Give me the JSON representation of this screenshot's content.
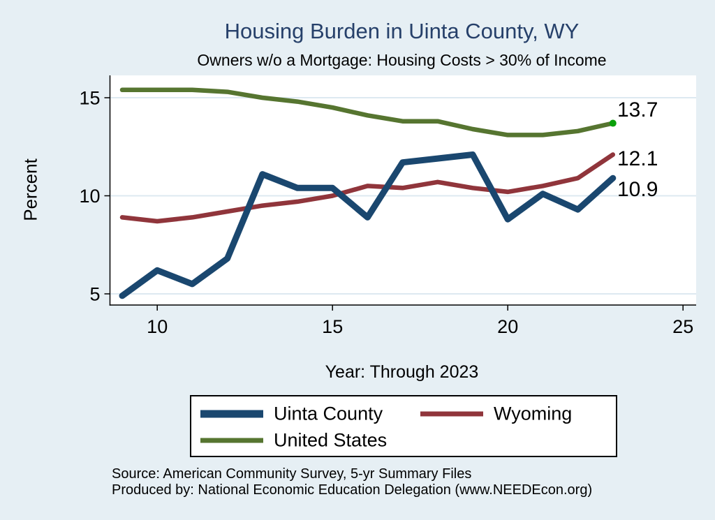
{
  "header": {
    "title": "Housing Burden in Uinta County, WY",
    "subtitle": "Owners w/o a Mortgage: Housing Costs > 30% of Income"
  },
  "chart_data": {
    "type": "line",
    "x_years": [
      2009,
      2010,
      2011,
      2012,
      2013,
      2014,
      2015,
      2016,
      2017,
      2018,
      2019,
      2020,
      2021,
      2022,
      2023
    ],
    "series": [
      {
        "name": "United States",
        "color": "#567530",
        "line_width": 6.5,
        "values": [
          15.4,
          15.4,
          15.4,
          15.3,
          15.0,
          14.8,
          14.5,
          14.1,
          13.8,
          13.8,
          13.4,
          13.1,
          13.1,
          13.3,
          13.7
        ],
        "end_label": "13.7",
        "end_marker_color": "#0aa00a"
      },
      {
        "name": "Wyoming",
        "color": "#90353b",
        "line_width": 6.5,
        "values": [
          8.9,
          8.7,
          8.9,
          9.2,
          9.5,
          9.7,
          10.0,
          10.5,
          10.4,
          10.7,
          10.4,
          10.2,
          10.5,
          10.9,
          12.1
        ],
        "end_label": "12.1",
        "end_marker_color": null
      },
      {
        "name": "Uinta County",
        "color": "#1a476f",
        "line_width": 9,
        "values": [
          4.9,
          6.2,
          5.5,
          6.8,
          11.1,
          10.4,
          10.4,
          8.9,
          11.7,
          11.9,
          12.1,
          8.8,
          10.1,
          9.3,
          10.9
        ],
        "end_label": "10.9",
        "end_marker_color": null
      }
    ],
    "title": "Housing Burden in Uinta County, WY",
    "subtitle": "Owners w/o a Mortgage: Housing Costs > 30% of Income",
    "xlabel": "Year: Through 2023",
    "ylabel": "Percent",
    "xticks": [
      "10",
      "15",
      "20",
      "25"
    ],
    "xtick_years": [
      2010,
      2015,
      2020,
      2025
    ],
    "yticks": [
      "5",
      "10",
      "15"
    ],
    "ytick_values": [
      5,
      10,
      15
    ],
    "xlim_years": [
      2008.6,
      2025.4
    ],
    "ylim": [
      4.4,
      16.1
    ],
    "grid": true,
    "legend_position": "bottom"
  },
  "legend": {
    "entries": [
      {
        "label": "Uinta County"
      },
      {
        "label": "Wyoming"
      },
      {
        "label": "United States"
      }
    ]
  },
  "footer": {
    "line1": "Source: American Community Survey, 5-yr Summary Files",
    "line2": "Produced by: National Economic Education Delegation (www.NEEDEcon.org)"
  },
  "colors": {
    "background": "#e6eff4",
    "plot_background": "#ffffff",
    "gridline": "#dde9f1",
    "axis": "#000000",
    "title_text": "#26406a"
  }
}
